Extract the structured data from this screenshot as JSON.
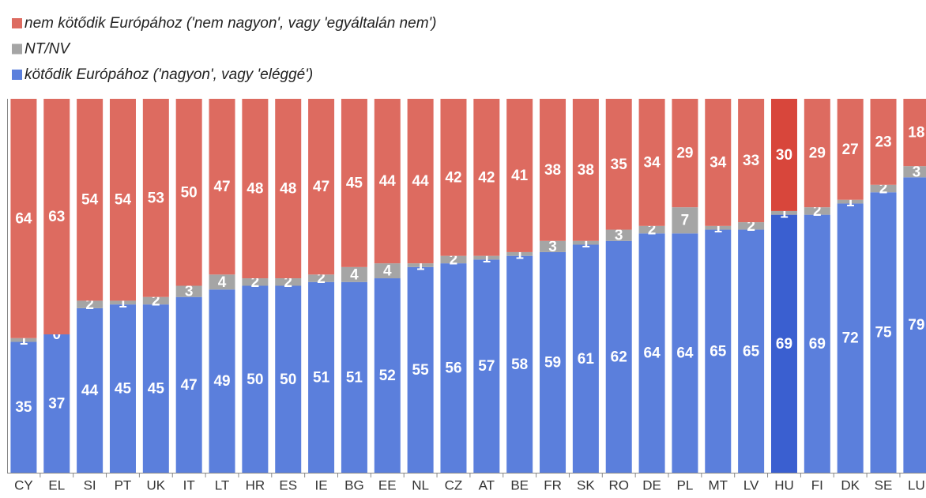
{
  "chart_data": {
    "type": "stacked_bar",
    "categories": [
      "CY",
      "EL",
      "SI",
      "PT",
      "UK",
      "IT",
      "LT",
      "HR",
      "ES",
      "IE",
      "BG",
      "EE",
      "NL",
      "CZ",
      "AT",
      "BE",
      "FR",
      "SK",
      "RO",
      "DE",
      "PL",
      "MT",
      "LV",
      "HU",
      "FI",
      "DK",
      "SE",
      "LU"
    ],
    "series": [
      {
        "name": "kötődik Európához ('nagyon', vagy 'eléggé')",
        "color": "#5b7fdc",
        "highlight_color": "#3a5fd0",
        "values": [
          35,
          37,
          44,
          45,
          45,
          47,
          49,
          50,
          50,
          51,
          51,
          52,
          55,
          56,
          57,
          58,
          59,
          61,
          62,
          64,
          64,
          65,
          65,
          69,
          69,
          72,
          75,
          79
        ]
      },
      {
        "name": "NT/NV",
        "color": "#a5a5a5",
        "highlight_color": "#a5a5a5",
        "values": [
          1,
          0,
          2,
          1,
          2,
          3,
          4,
          2,
          2,
          2,
          4,
          4,
          1,
          2,
          1,
          1,
          3,
          1,
          3,
          2,
          7,
          1,
          2,
          1,
          2,
          1,
          2,
          3
        ]
      },
      {
        "name": "nem kötődik Európához ('nem nagyon', vagy 'egyáltalán nem')",
        "color": "#dd6b60",
        "highlight_color": "#d8463b",
        "values": [
          64,
          63,
          54,
          54,
          53,
          50,
          47,
          48,
          48,
          47,
          45,
          44,
          44,
          42,
          42,
          41,
          38,
          38,
          35,
          34,
          29,
          34,
          33,
          30,
          29,
          27,
          23,
          18
        ]
      }
    ],
    "highlight": "HU",
    "ylim": [
      0,
      100
    ]
  }
}
